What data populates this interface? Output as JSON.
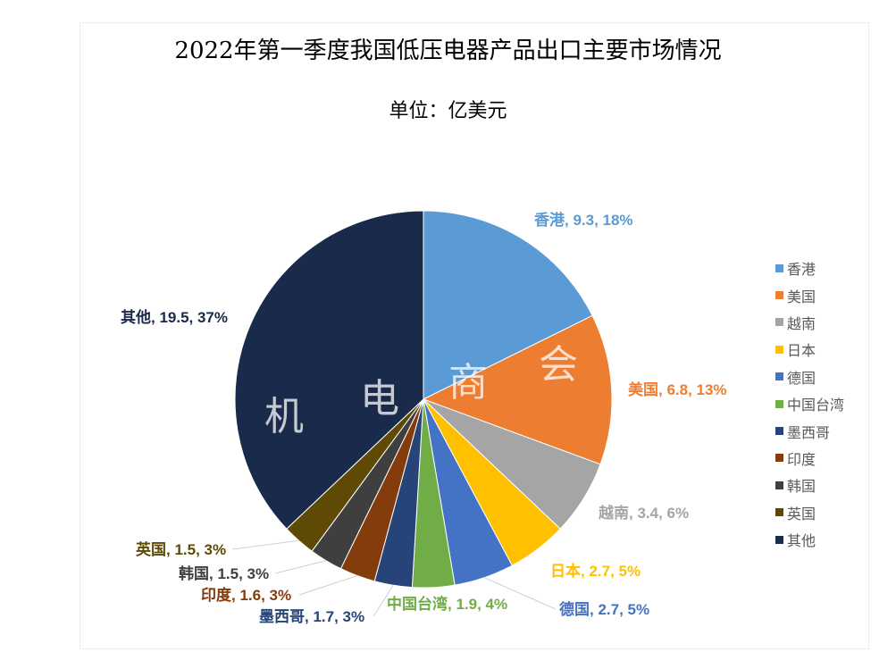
{
  "title": "2022年第一季度我国低压电器产品出口主要市场情况",
  "subtitle": "单位：亿美元",
  "watermark": [
    "机",
    "电",
    "商",
    "会"
  ],
  "chart_data": {
    "type": "pie",
    "title": "2022年第一季度我国低压电器产品出口主要市场情况",
    "subtitle": "单位：亿美元",
    "unit": "亿美元",
    "legend_position": "right",
    "slices": [
      {
        "name": "香港",
        "value": 9.3,
        "percent": "18%",
        "color": "#5b9bd5",
        "label": "香港, 9.3, 18%"
      },
      {
        "name": "美国",
        "value": 6.8,
        "percent": "13%",
        "color": "#ed7d31",
        "label": "美国, 6.8, 13%"
      },
      {
        "name": "越南",
        "value": 3.4,
        "percent": "6%",
        "color": "#a5a5a5",
        "label": "越南, 3.4, 6%"
      },
      {
        "name": "日本",
        "value": 2.7,
        "percent": "5%",
        "color": "#ffc000",
        "label": "日本, 2.7, 5%"
      },
      {
        "name": "德国",
        "value": 2.7,
        "percent": "5%",
        "color": "#4472c4",
        "label": "德国, 2.7, 5%"
      },
      {
        "name": "中国台湾",
        "value": 1.9,
        "percent": "4%",
        "color": "#70ad47",
        "label": "中国台湾, 1.9, 4%"
      },
      {
        "name": "墨西哥",
        "value": 1.7,
        "percent": "3%",
        "color": "#264478",
        "label": "墨西哥, 1.7, 3%"
      },
      {
        "name": "印度",
        "value": 1.6,
        "percent": "3%",
        "color": "#843c0c",
        "label": "印度, 1.6, 3%"
      },
      {
        "name": "韩国",
        "value": 1.5,
        "percent": "3%",
        "color": "#3f3f3f",
        "label": "韩国, 1.5, 3%"
      },
      {
        "name": "英国",
        "value": 1.5,
        "percent": "3%",
        "color": "#5e4a05",
        "label": "英国, 1.5, 3%"
      },
      {
        "name": "其他",
        "value": 19.5,
        "percent": "37%",
        "color": "#1a2a4a",
        "label": "其他, 19.5, 37%"
      }
    ]
  }
}
